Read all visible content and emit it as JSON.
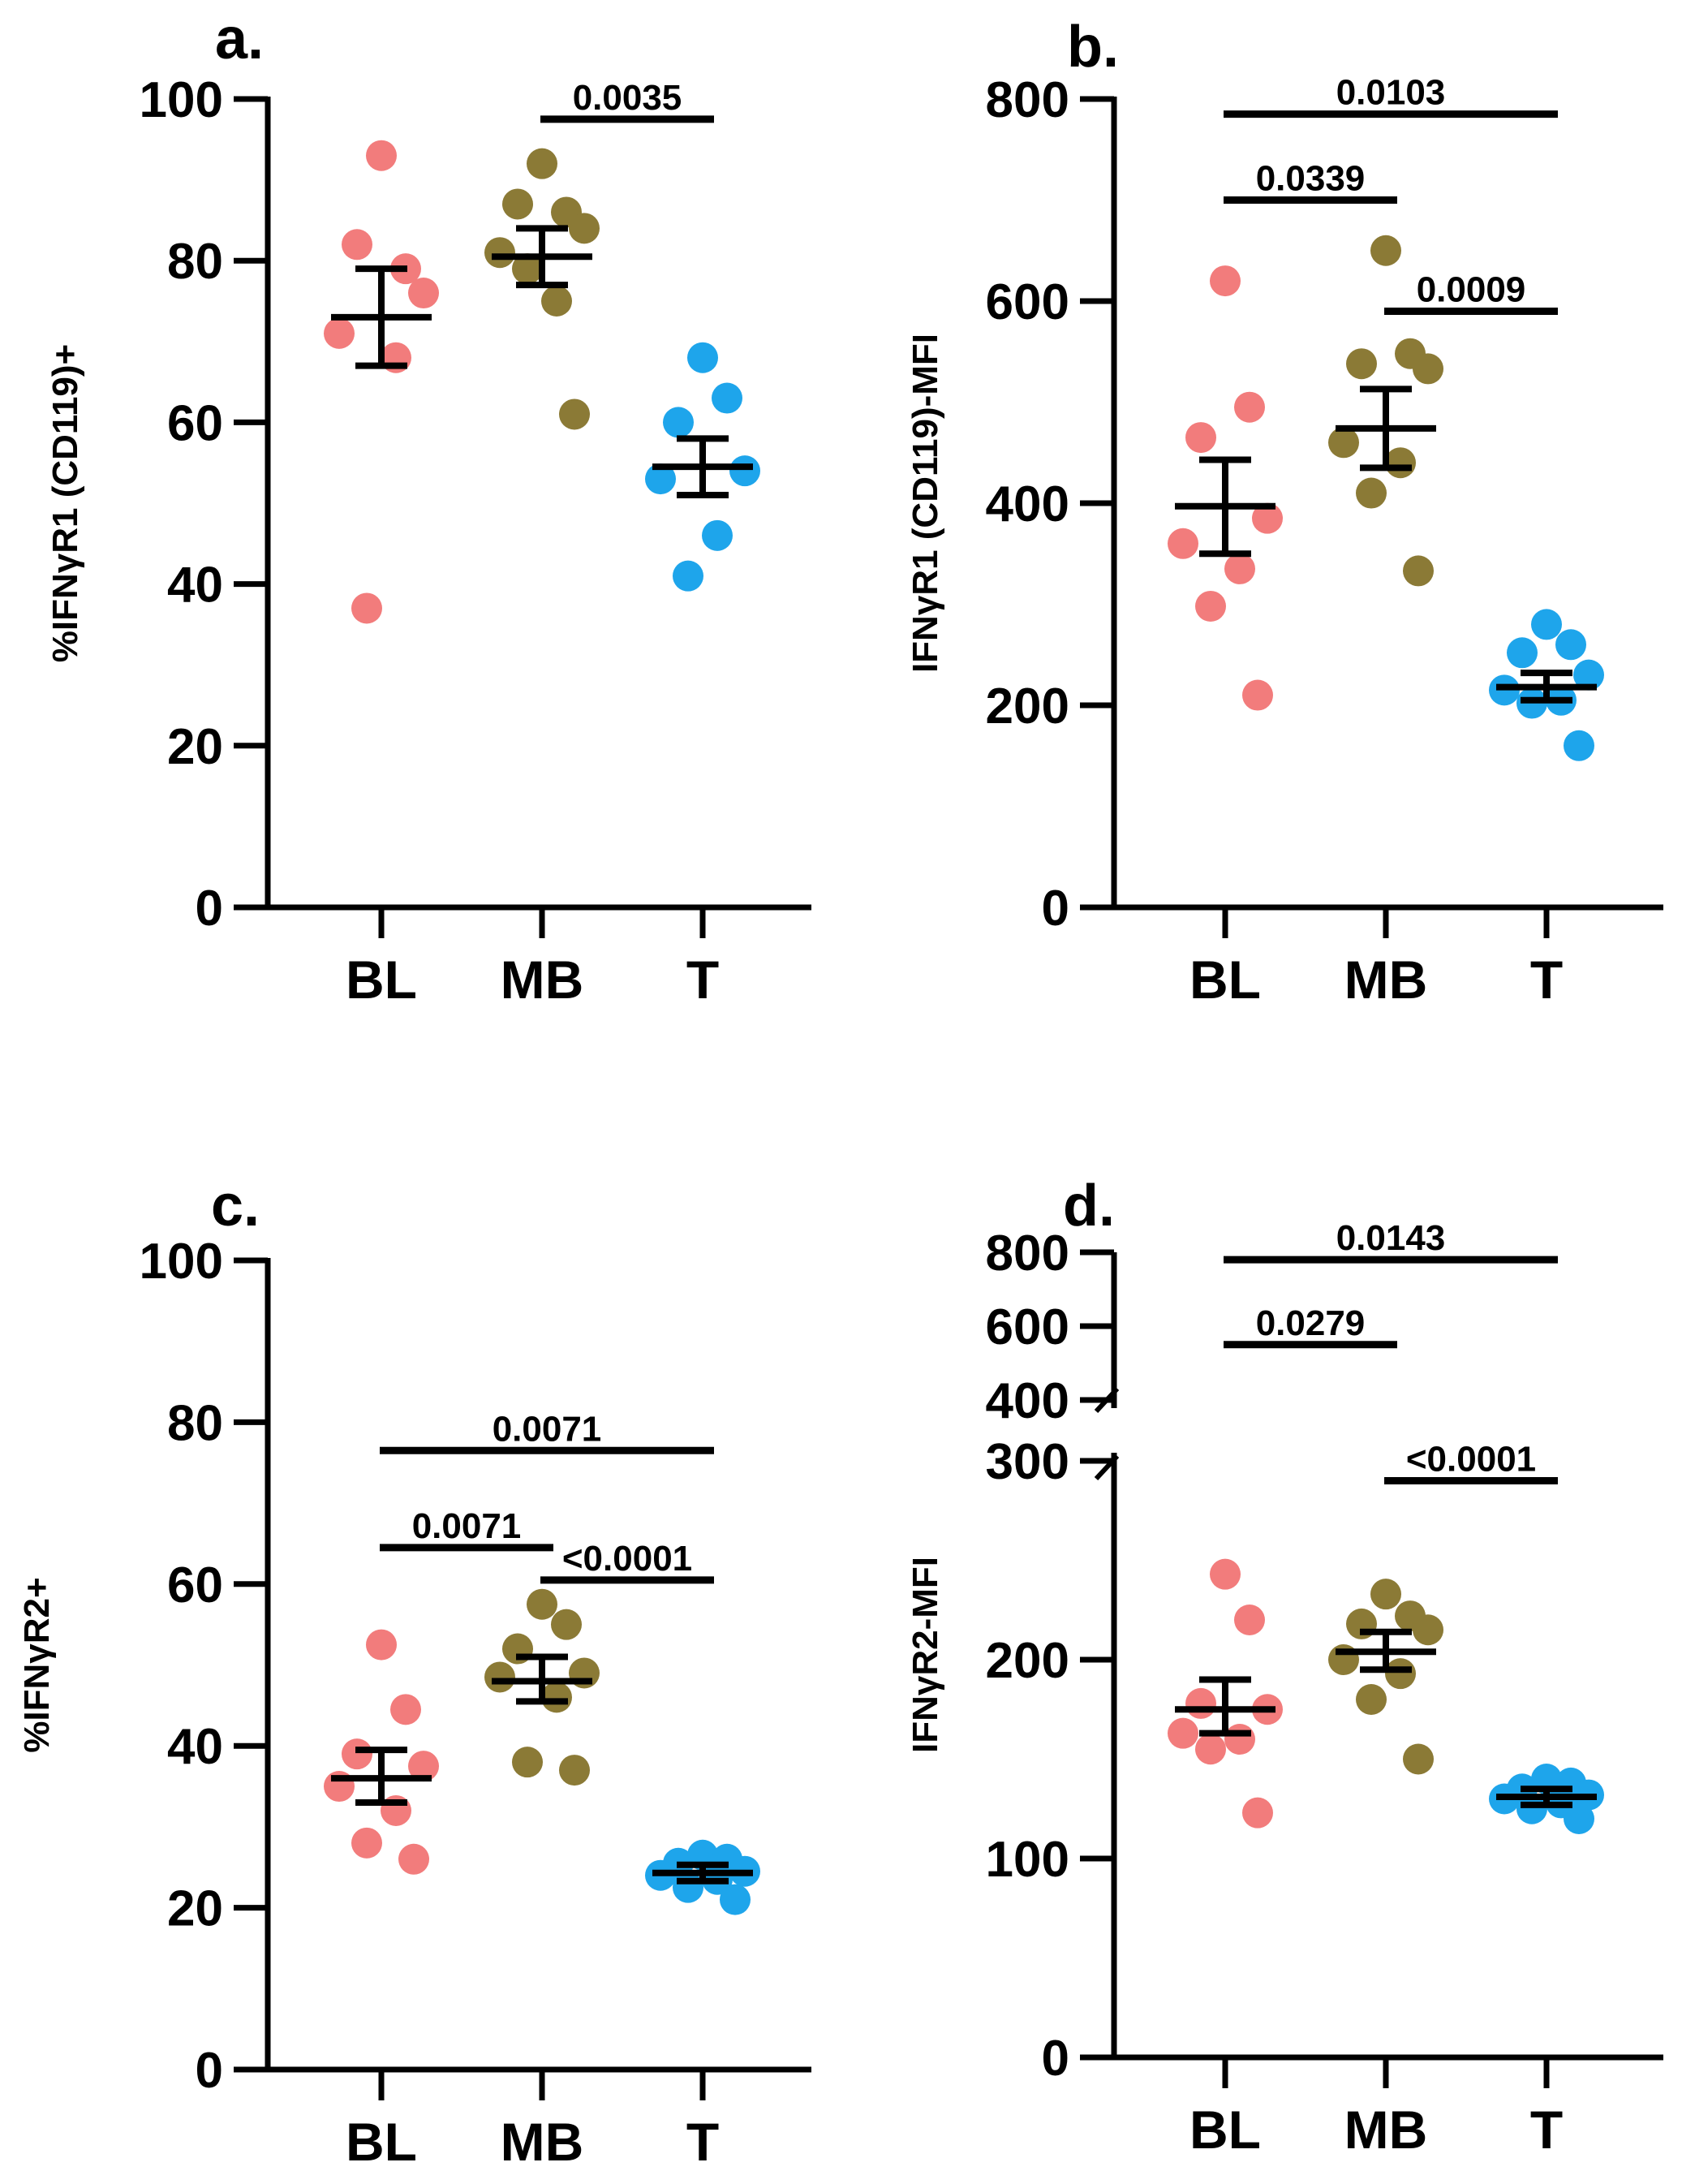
{
  "colors": {
    "BL": "#f27c7c",
    "MB": "#8b7a36",
    "T": "#1ea5eb",
    "ink": "#000000"
  },
  "chart_data": [
    {
      "panel_label": "a.",
      "type": "scatter",
      "ylabel": "%IFNγR1 (CD119)+",
      "ylim": [
        0,
        100
      ],
      "yticks": [
        "0",
        "20",
        "40",
        "60",
        "80",
        "100"
      ],
      "categories": [
        "BL",
        "MB",
        "T"
      ],
      "series": [
        {
          "name": "BL",
          "values": [
            93,
            79,
            82,
            76,
            71,
            68,
            37
          ],
          "mean": 73,
          "sem_low": 67,
          "sem_high": 79
        },
        {
          "name": "MB",
          "values": [
            92,
            86,
            87,
            84,
            81,
            75,
            79,
            61
          ],
          "mean": 80.5,
          "sem_low": 77,
          "sem_high": 84
        },
        {
          "name": "T",
          "values": [
            68,
            63,
            60,
            54,
            53,
            46,
            41
          ],
          "mean": 54.5,
          "sem_low": 51,
          "sem_high": 58
        }
      ],
      "comparisons": [
        {
          "from": "MB",
          "to": "T",
          "label": "0.0035",
          "y": 97.5
        }
      ]
    },
    {
      "panel_label": "b.",
      "type": "scatter",
      "ylabel": "IFNγR1 (CD119)-MFI",
      "ylim": [
        0,
        800
      ],
      "yticks": [
        "0",
        "200",
        "400",
        "600",
        "800"
      ],
      "categories": [
        "BL",
        "MB",
        "T"
      ],
      "series": [
        {
          "name": "BL",
          "values": [
            620,
            495,
            465,
            385,
            360,
            335,
            298,
            210
          ],
          "mean": 397,
          "sem_low": 350,
          "sem_high": 443
        },
        {
          "name": "MB",
          "values": [
            650,
            548,
            538,
            533,
            460,
            440,
            410,
            333
          ],
          "mean": 474,
          "sem_low": 435,
          "sem_high": 513
        },
        {
          "name": "T",
          "values": [
            280,
            260,
            252,
            230,
            215,
            205,
            202,
            160
          ],
          "mean": 218,
          "sem_low": 205,
          "sem_high": 232
        }
      ],
      "comparisons": [
        {
          "from": "BL",
          "to": "T",
          "label": "0.0103",
          "y": 785
        },
        {
          "from": "BL",
          "to": "MB",
          "label": "0.0339",
          "y": 700
        },
        {
          "from": "MB",
          "to": "T",
          "label": "0.0009",
          "y": 590
        }
      ]
    },
    {
      "panel_label": "c.",
      "type": "scatter",
      "ylabel": "%IFNγR2+",
      "ylim": [
        0,
        100
      ],
      "yticks": [
        "0",
        "20",
        "40",
        "60",
        "80",
        "100"
      ],
      "categories": [
        "BL",
        "MB",
        "T"
      ],
      "series": [
        {
          "name": "BL",
          "values": [
            52.5,
            44.5,
            39,
            37.5,
            35,
            32,
            28,
            26
          ],
          "mean": 36,
          "sem_low": 33,
          "sem_high": 39.5
        },
        {
          "name": "MB",
          "values": [
            57.5,
            55,
            52,
            49,
            48.5,
            46,
            38,
            37
          ],
          "mean": 48,
          "sem_low": 45.5,
          "sem_high": 51
        },
        {
          "name": "T",
          "values": [
            26.5,
            26,
            25.5,
            24.5,
            24,
            23.5,
            22.5,
            21
          ],
          "mean": 24.3,
          "sem_low": 23.3,
          "sem_high": 25.3
        }
      ],
      "comparisons": [
        {
          "from": "BL",
          "to": "T",
          "label": "0.0071",
          "y": 76.5
        },
        {
          "from": "BL",
          "to": "MB",
          "label": "0.0071",
          "y": 64.5
        },
        {
          "from": "MB",
          "to": "T",
          "label": "<0.0001",
          "y": 60.5
        }
      ]
    },
    {
      "panel_label": "d.",
      "type": "scatter",
      "ylabel": "IFNγR2-MFI",
      "ylim": [
        0,
        800
      ],
      "axis_break": [
        300,
        400
      ],
      "yticks": [
        "0",
        "100",
        "200",
        "300",
        "400",
        "600",
        "800"
      ],
      "categories": [
        "BL",
        "MB",
        "T"
      ],
      "series": [
        {
          "name": "BL",
          "values": [
            243,
            220,
            178,
            175,
            163,
            160,
            155,
            123
          ],
          "mean": 175,
          "sem_low": 163,
          "sem_high": 190
        },
        {
          "name": "MB",
          "values": [
            233,
            222,
            218,
            215,
            200,
            193,
            180,
            150
          ],
          "mean": 204,
          "sem_low": 195,
          "sem_high": 214
        },
        {
          "name": "T",
          "values": [
            140,
            138,
            135,
            132,
            130,
            128,
            125,
            120
          ],
          "mean": 131,
          "sem_low": 127,
          "sem_high": 135
        }
      ],
      "comparisons": [
        {
          "from": "BL",
          "to": "T",
          "label": "0.0143",
          "y": 780
        },
        {
          "from": "BL",
          "to": "MB",
          "label": "0.0279",
          "y": 550
        },
        {
          "from": "MB",
          "to": "T",
          "label": "<0.0001",
          "y": 290
        }
      ]
    }
  ]
}
